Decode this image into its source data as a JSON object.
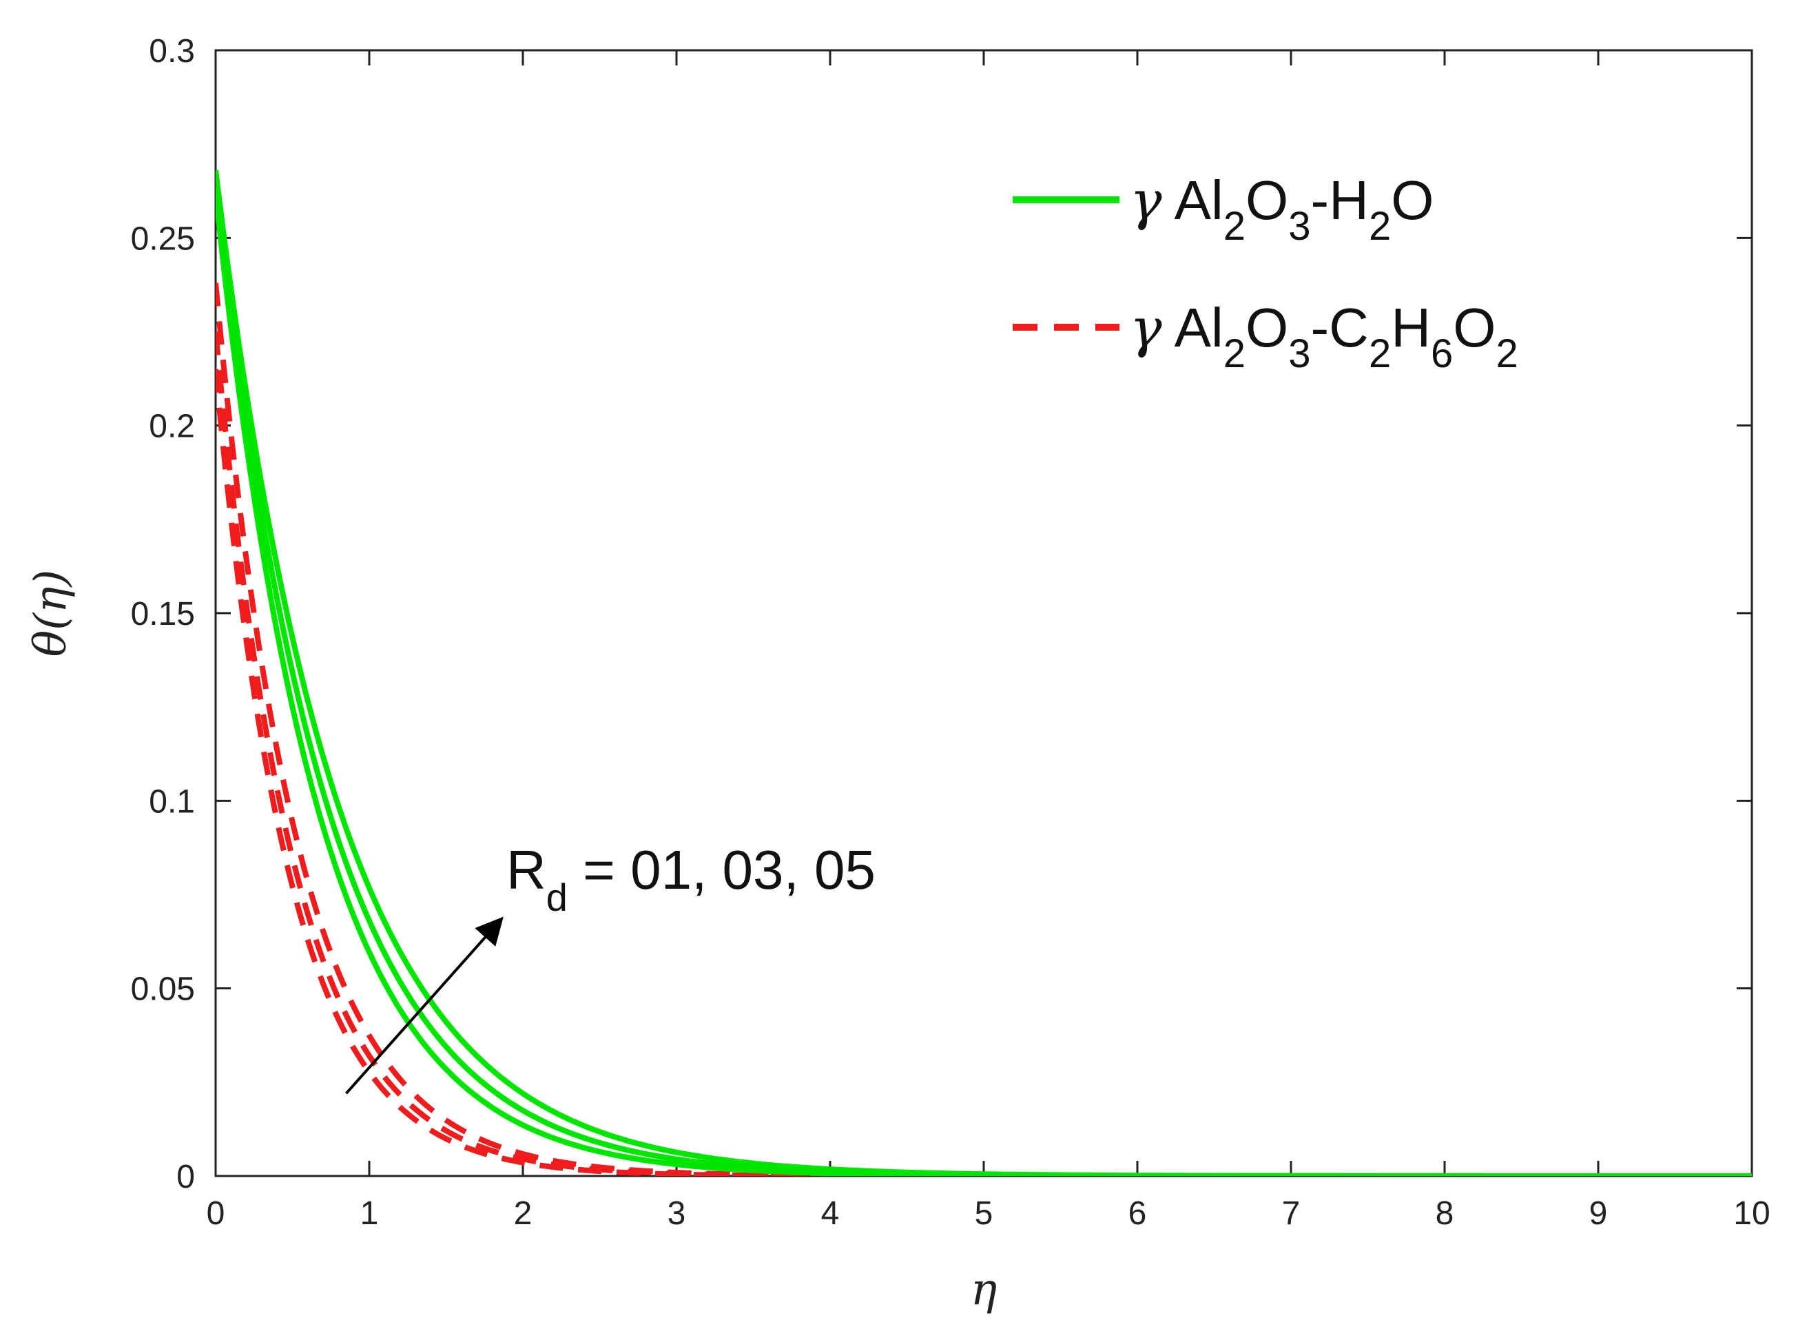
{
  "chart_data": {
    "type": "line",
    "xlabel": "η",
    "ylabel": "θ(η)",
    "xlim": [
      0,
      10
    ],
    "ylim": [
      0,
      0.3
    ],
    "xticks": [
      "0",
      "1",
      "2",
      "3",
      "4",
      "5",
      "6",
      "7",
      "8",
      "9",
      "10"
    ],
    "yticks": [
      "0",
      "0.05",
      "0.1",
      "0.15",
      "0.2",
      "0.25",
      "0.3"
    ],
    "grid": false,
    "legend_position": "top-right",
    "legend": [
      {
        "gamma": "γ",
        "base": "Al",
        "sub1": "2",
        "mid1": "O",
        "sub2": "3",
        "mid2": "-H",
        "sub3": "2",
        "mid3": "O",
        "sub4": "",
        "mid4": "",
        "sub5": "",
        "color": "#00e600",
        "dash": false
      },
      {
        "gamma": "γ",
        "base": "Al",
        "sub1": "2",
        "mid1": "O",
        "sub2": "3",
        "mid2": "-C",
        "sub3": "2",
        "mid3": "H",
        "sub4": "6",
        "mid4": "O",
        "sub5": "2",
        "color": "#ee1c1c",
        "dash": true
      }
    ],
    "annotation": {
      "main": "R",
      "sub": "d",
      "rest": " = 01, 03, 05",
      "arrow_from": [
        0.85,
        0.022
      ],
      "arrow_to": [
        1.85,
        0.068
      ]
    },
    "series": [
      {
        "group": "γ Al2O3-H2O",
        "style": "solid",
        "color": "#00e600",
        "start": 0.262,
        "decay": 1.48
      },
      {
        "group": "γ Al2O3-H2O",
        "style": "solid",
        "color": "#00e600",
        "start": 0.265,
        "decay": 1.36
      },
      {
        "group": "γ Al2O3-H2O",
        "style": "solid",
        "color": "#00e600",
        "start": 0.268,
        "decay": 1.25
      },
      {
        "group": "γ Al2O3-C2H6O2",
        "style": "dashed",
        "color": "#ee1c1c",
        "start": 0.238,
        "decay": 1.85
      },
      {
        "group": "γ Al2O3-C2H6O2",
        "style": "dashed",
        "color": "#ee1c1c",
        "start": 0.225,
        "decay": 1.95
      },
      {
        "group": "γ Al2O3-C2H6O2",
        "style": "dashed",
        "color": "#ee1c1c",
        "start": 0.215,
        "decay": 2.05
      }
    ]
  }
}
